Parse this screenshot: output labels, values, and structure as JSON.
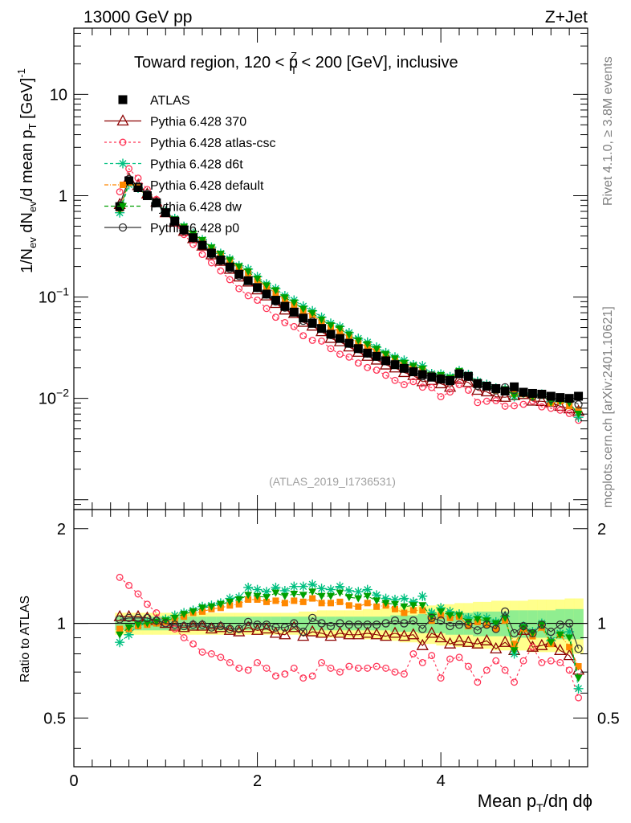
{
  "header": {
    "left": "13000 GeV pp",
    "right": "Z+Jet",
    "title_main": "Toward region, 120 < p",
    "title_sup": "Z",
    "title_sub": "T",
    "title_rest": " < 200 [GeV], inclusive",
    "analysis_id": "(ATLAS_2019_I1736531)",
    "side_rivet": "Rivet 4.1.0, ≥ 3.8M events",
    "side_mcplots": "mcplots.cern.ch [arXiv:2401.10621]"
  },
  "axes": {
    "ylabel_top": "1/N_ev dN_ev/d mean p_T [GeV]^-1",
    "ylabel_ratio": "Ratio to ATLAS",
    "xlabel": "Mean p_T/dη dϕ",
    "top_ticks": [
      {
        "base": "10",
        "exp": "",
        "value": 10
      },
      {
        "base": "1",
        "exp": "",
        "value": 1
      },
      {
        "base": "10",
        "exp": "−1",
        "value": 0.1
      },
      {
        "base": "10",
        "exp": "−2",
        "value": 0.01
      }
    ],
    "ratio_ticks": [
      "2",
      "1",
      "0.5"
    ],
    "x_ticks": [
      "0",
      "2",
      "4"
    ]
  },
  "legend": {
    "atlas": "ATLAS",
    "items": [
      "Pythia 6.428 370",
      "Pythia 6.428 atlas-csc",
      "Pythia 6.428 d6t",
      "Pythia 6.428 default",
      "Pythia 6.428 dw",
      "Pythia 6.428 p0"
    ]
  },
  "chart_data": {
    "type": "scatter",
    "x": [
      0.5,
      0.6,
      0.7,
      0.8,
      0.9,
      1.0,
      1.1,
      1.2,
      1.3,
      1.4,
      1.5,
      1.6,
      1.7,
      1.8,
      1.9,
      2.0,
      2.1,
      2.2,
      2.3,
      2.4,
      2.5,
      2.6,
      2.7,
      2.8,
      2.9,
      3.0,
      3.1,
      3.2,
      3.3,
      3.4,
      3.5,
      3.6,
      3.7,
      3.8,
      3.9,
      4.0,
      4.1,
      4.2,
      4.3,
      4.4,
      4.5,
      4.6,
      4.7,
      4.8,
      4.9,
      5.0,
      5.1,
      5.2,
      5.3,
      5.4,
      5.5
    ],
    "xlim": [
      0,
      5.6
    ],
    "ylim_top": [
      0.0008,
      45
    ],
    "yscale_top": "log",
    "ylim_ratio": [
      0.35,
      2.3
    ],
    "yscale_ratio": "log",
    "atlas": [
      0.78,
      1.4,
      1.2,
      1.0,
      0.85,
      0.68,
      0.56,
      0.46,
      0.385,
      0.325,
      0.272,
      0.232,
      0.198,
      0.168,
      0.145,
      0.124,
      0.107,
      0.093,
      0.081,
      0.071,
      0.062,
      0.055,
      0.049,
      0.043,
      0.039,
      0.035,
      0.031,
      0.028,
      0.026,
      0.0235,
      0.0215,
      0.0198,
      0.0183,
      0.0172,
      0.0162,
      0.0155,
      0.015,
      0.0175,
      0.0165,
      0.014,
      0.0132,
      0.0125,
      0.0118,
      0.013,
      0.0115,
      0.0112,
      0.011,
      0.0105,
      0.0102,
      0.01,
      0.0105
    ],
    "band_inner": [
      0.05,
      0.05,
      0.05,
      0.05,
      0.05,
      0.05,
      0.05,
      0.05,
      0.05,
      0.05,
      0.05,
      0.05,
      0.05,
      0.05,
      0.05,
      0.05,
      0.05,
      0.05,
      0.05,
      0.05,
      0.05,
      0.05,
      0.05,
      0.05,
      0.05,
      0.05,
      0.05,
      0.05,
      0.05,
      0.05,
      0.06,
      0.06,
      0.06,
      0.07,
      0.07,
      0.07,
      0.08,
      0.08,
      0.08,
      0.09,
      0.09,
      0.09,
      0.09,
      0.1,
      0.1,
      0.1,
      0.1,
      0.1,
      0.11,
      0.11,
      0.11
    ],
    "band_outer": [
      0.08,
      0.08,
      0.08,
      0.08,
      0.08,
      0.08,
      0.08,
      0.08,
      0.08,
      0.08,
      0.08,
      0.08,
      0.08,
      0.08,
      0.08,
      0.08,
      0.08,
      0.08,
      0.08,
      0.08,
      0.09,
      0.09,
      0.1,
      0.1,
      0.1,
      0.1,
      0.1,
      0.11,
      0.11,
      0.12,
      0.12,
      0.13,
      0.13,
      0.14,
      0.14,
      0.15,
      0.15,
      0.16,
      0.16,
      0.17,
      0.17,
      0.18,
      0.18,
      0.18,
      0.18,
      0.19,
      0.19,
      0.19,
      0.19,
      0.2,
      0.2
    ],
    "ratios": [
      {
        "name": "Pythia 6.428 370",
        "color": "#8b0000",
        "dash": "",
        "marker": "triangle",
        "values": [
          1.05,
          1.05,
          1.05,
          1.04,
          1.02,
          1.0,
          0.98,
          0.97,
          0.98,
          0.98,
          0.96,
          0.97,
          0.95,
          0.94,
          0.97,
          0.95,
          0.96,
          0.93,
          0.92,
          0.97,
          0.91,
          0.94,
          0.93,
          0.91,
          0.93,
          0.92,
          0.92,
          0.93,
          0.92,
          0.91,
          0.93,
          0.91,
          0.92,
          0.85,
          0.93,
          0.9,
          0.86,
          0.88,
          0.87,
          0.86,
          0.88,
          0.83,
          0.87,
          0.82,
          0.95,
          0.84,
          0.85,
          0.87,
          0.82,
          0.79,
          0.71
        ]
      },
      {
        "name": "Pythia 6.428 atlas-csc",
        "color": "#ff3355",
        "dash": "3,3",
        "marker": "circle",
        "values": [
          1.4,
          1.32,
          1.24,
          1.15,
          1.08,
          1.0,
          0.96,
          0.9,
          0.86,
          0.81,
          0.8,
          0.78,
          0.75,
          0.72,
          0.71,
          0.75,
          0.72,
          0.68,
          0.69,
          0.72,
          0.67,
          0.68,
          0.75,
          0.72,
          0.7,
          0.73,
          0.72,
          0.72,
          0.73,
          0.72,
          0.7,
          0.69,
          0.8,
          0.75,
          0.79,
          0.67,
          0.77,
          0.78,
          0.73,
          0.65,
          0.71,
          0.76,
          0.71,
          0.65,
          0.76,
          0.84,
          0.75,
          0.76,
          0.75,
          0.71,
          0.58
        ]
      },
      {
        "name": "Pythia 6.428 d6t",
        "color": "#00c080",
        "dash": "4,3",
        "marker": "star",
        "values": [
          0.87,
          0.92,
          0.99,
          1.01,
          1.01,
          1.03,
          1.06,
          1.08,
          1.1,
          1.13,
          1.14,
          1.16,
          1.2,
          1.21,
          1.3,
          1.28,
          1.26,
          1.3,
          1.27,
          1.31,
          1.31,
          1.33,
          1.29,
          1.28,
          1.31,
          1.27,
          1.26,
          1.28,
          1.23,
          1.2,
          1.19,
          1.2,
          1.17,
          1.22,
          1.08,
          1.12,
          1.09,
          1.07,
          1.04,
          1.05,
          1.04,
          1.01,
          1.05,
          0.8,
          0.98,
          0.94,
          1.0,
          0.88,
          0.93,
          0.94,
          0.62
        ]
      },
      {
        "name": "Pythia 6.428 default",
        "color": "#ff8800",
        "dash": "5,2,1,2",
        "marker": "square",
        "values": [
          0.96,
          0.96,
          0.98,
          0.99,
          1.0,
          1.01,
          1.03,
          1.05,
          1.08,
          1.09,
          1.11,
          1.12,
          1.14,
          1.15,
          1.19,
          1.19,
          1.17,
          1.18,
          1.16,
          1.18,
          1.17,
          1.2,
          1.16,
          1.16,
          1.17,
          1.14,
          1.13,
          1.16,
          1.13,
          1.14,
          1.11,
          1.08,
          1.1,
          1.1,
          1.02,
          1.06,
          1.04,
          1.05,
          0.98,
          1.01,
          0.99,
          0.96,
          1.02,
          0.86,
          0.96,
          0.91,
          0.97,
          0.86,
          0.92,
          0.84,
          0.73
        ]
      },
      {
        "name": "Pythia 6.428 dw",
        "color": "#00a000",
        "dash": "5,3",
        "marker": "triangle-down",
        "values": [
          0.92,
          0.97,
          0.99,
          1.0,
          1.01,
          1.02,
          1.04,
          1.07,
          1.09,
          1.12,
          1.13,
          1.15,
          1.17,
          1.19,
          1.23,
          1.22,
          1.21,
          1.25,
          1.22,
          1.24,
          1.23,
          1.26,
          1.22,
          1.22,
          1.25,
          1.21,
          1.2,
          1.22,
          1.18,
          1.16,
          1.15,
          1.13,
          1.14,
          1.14,
          1.05,
          1.09,
          1.06,
          1.06,
          1.01,
          1.03,
          1.02,
          1.0,
          1.04,
          0.82,
          0.97,
          0.93,
          0.99,
          0.87,
          0.92,
          0.9,
          0.67
        ]
      },
      {
        "name": "Pythia 6.428 p0",
        "color": "#333333",
        "dash": "",
        "marker": "circle-open",
        "values": [
          1.03,
          1.04,
          1.04,
          1.04,
          1.02,
          1.0,
          0.99,
          0.98,
          0.99,
          0.99,
          0.97,
          0.98,
          0.96,
          0.96,
          1.01,
          0.99,
          0.99,
          0.97,
          0.97,
          1.0,
          0.94,
          1.04,
          1.0,
          0.98,
          1.0,
          0.99,
          0.99,
          0.99,
          0.99,
          1.0,
          1.02,
          1.0,
          1.02,
          0.96,
          1.04,
          1.02,
          0.98,
          0.99,
          0.99,
          0.95,
          0.99,
          0.96,
          1.09,
          0.93,
          0.98,
          0.93,
          0.99,
          0.94,
          0.99,
          1.0,
          0.83
        ]
      }
    ]
  }
}
